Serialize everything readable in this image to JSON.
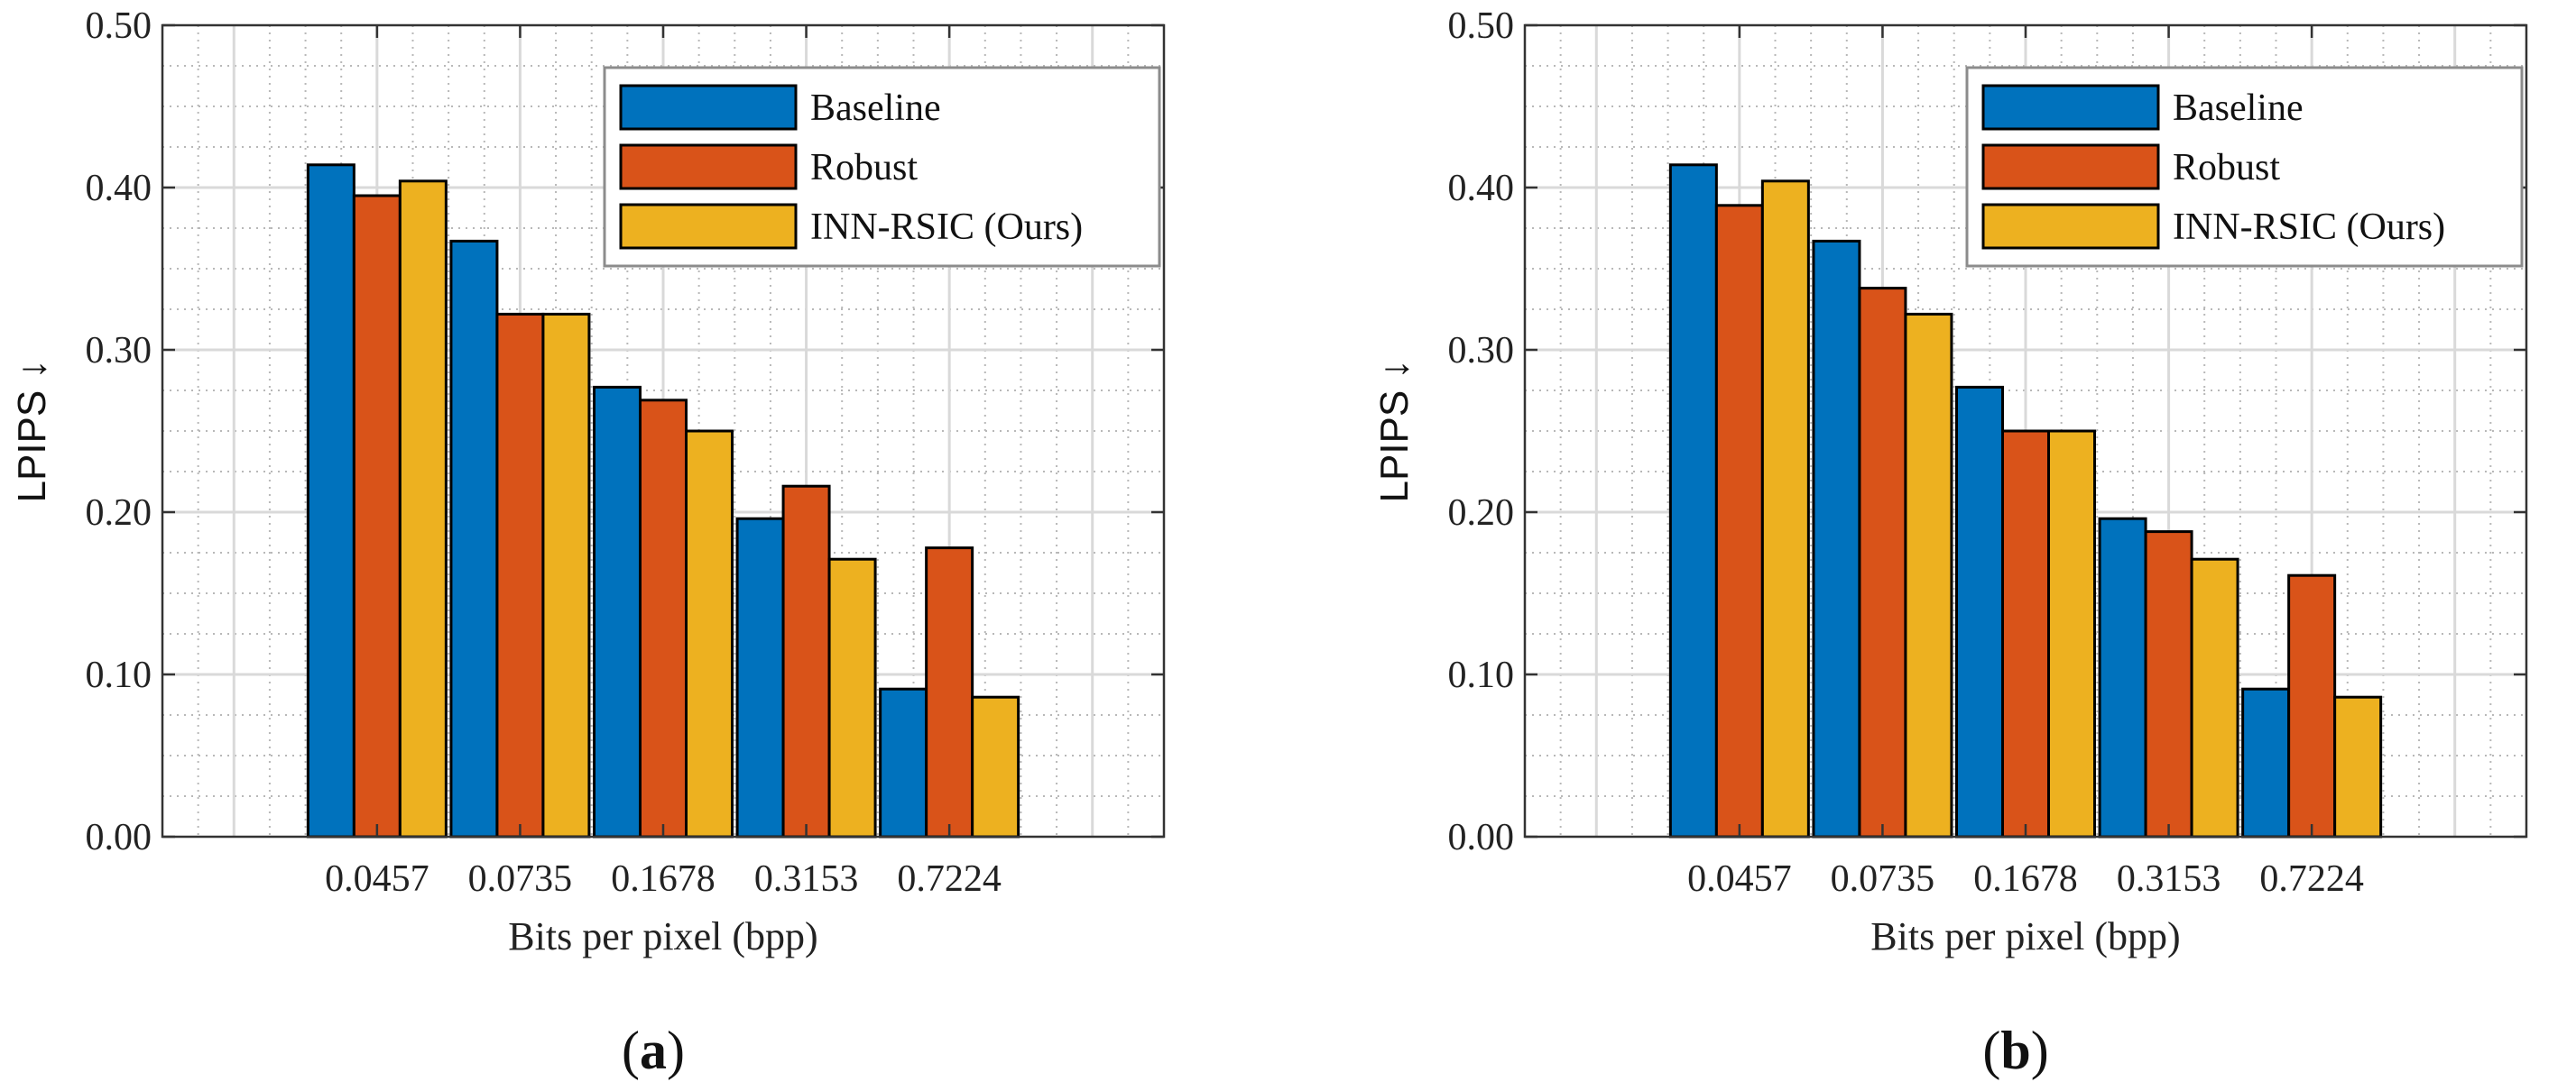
{
  "chart_data": [
    {
      "type": "bar",
      "panel_label": "a",
      "categories": [
        "0.0457",
        "0.0735",
        "0.1678",
        "0.3153",
        "0.7224"
      ],
      "series": [
        {
          "name": "Baseline",
          "color": "#0072BD",
          "values": [
            0.414,
            0.367,
            0.277,
            0.196,
            0.091
          ]
        },
        {
          "name": "Robust",
          "color": "#D95319",
          "values": [
            0.395,
            0.322,
            0.269,
            0.216,
            0.178
          ]
        },
        {
          "name": "INN-RSIC (Ours)",
          "color": "#EDB120",
          "values": [
            0.404,
            0.322,
            0.25,
            0.171,
            0.086
          ]
        }
      ],
      "xlabel": "Bits per pixel (bpp)",
      "ylabel": "LPIPS",
      "ylabel_arrow": "↓",
      "ylim": [
        0,
        0.5
      ],
      "yticks": [
        "0.00",
        "0.10",
        "0.20",
        "0.30",
        "0.40",
        "0.50"
      ],
      "grid": true,
      "legend": "top-right"
    },
    {
      "type": "bar",
      "panel_label": "b",
      "categories": [
        "0.0457",
        "0.0735",
        "0.1678",
        "0.3153",
        "0.7224"
      ],
      "series": [
        {
          "name": "Baseline",
          "color": "#0072BD",
          "values": [
            0.414,
            0.367,
            0.277,
            0.196,
            0.091
          ]
        },
        {
          "name": "Robust",
          "color": "#D95319",
          "values": [
            0.389,
            0.338,
            0.25,
            0.188,
            0.161
          ]
        },
        {
          "name": "INN-RSIC (Ours)",
          "color": "#EDB120",
          "values": [
            0.404,
            0.322,
            0.25,
            0.171,
            0.086
          ]
        }
      ],
      "xlabel": "Bits per pixel (bpp)",
      "ylabel": "LPIPS",
      "ylabel_arrow": "↓",
      "ylim": [
        0,
        0.5
      ],
      "yticks": [
        "0.00",
        "0.10",
        "0.20",
        "0.30",
        "0.40",
        "0.50"
      ],
      "grid": true,
      "legend": "top-right"
    }
  ]
}
